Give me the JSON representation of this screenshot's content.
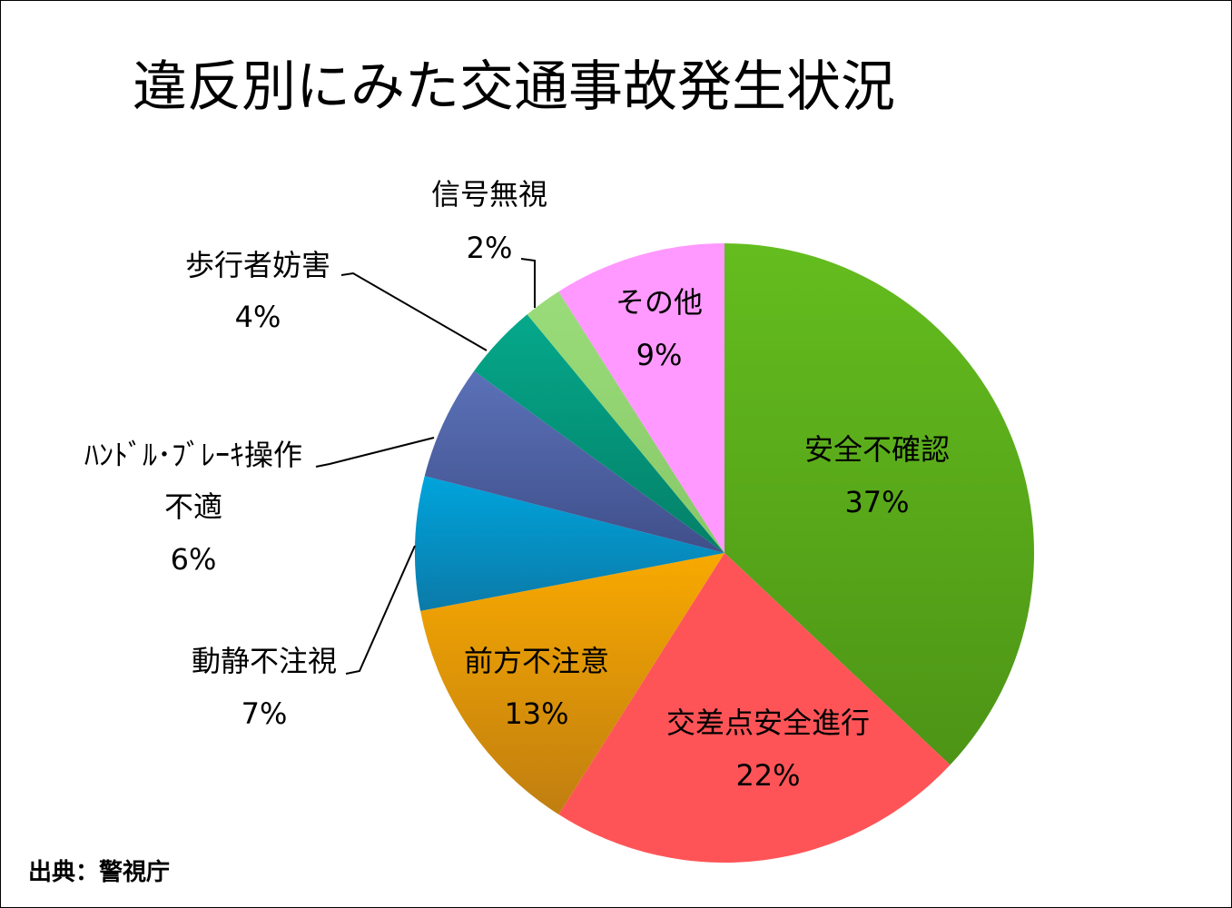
{
  "chart_data": {
    "type": "pie",
    "title": "違反別にみた交通事故発生状況",
    "unit": "%",
    "slices": [
      {
        "label": "安全不確認",
        "value": 37,
        "color": "#64bd1e",
        "color_dark": "#4d9416"
      },
      {
        "label": "交差点安全進行",
        "value": 22,
        "color": "#ff5457",
        "color_dark": "#ff5457"
      },
      {
        "label": "前方不注意",
        "value": 13,
        "color": "#f8a900",
        "color_dark": "#c07e10"
      },
      {
        "label": "動静不注視",
        "value": 7,
        "color": "#00a4dc",
        "color_dark": "#0b7aa8"
      },
      {
        "label": "ﾊﾝﾄﾞﾙ･ﾌﾞﾚｰｷ操作不適",
        "label_lines": [
          "ﾊﾝﾄﾞﾙ･ﾌﾞﾚｰｷ操作",
          "不適"
        ],
        "value": 6,
        "color": "#5b71b8",
        "color_dark": "#3f4f8a"
      },
      {
        "label": "歩行者妨害",
        "value": 4,
        "color": "#05a88b",
        "color_dark": "#048068"
      },
      {
        "label": "信号無視",
        "value": 2,
        "color": "#9bdc7a",
        "color_dark": "#86c868"
      },
      {
        "label": "その他",
        "value": 9,
        "color": "#ff99ff",
        "color_dark": "#ff99ff"
      }
    ],
    "percent_labels": [
      "37%",
      "22%",
      "13%",
      "7%",
      "6%",
      "4%",
      "2%",
      "9%"
    ]
  },
  "source": "出典：警視庁"
}
